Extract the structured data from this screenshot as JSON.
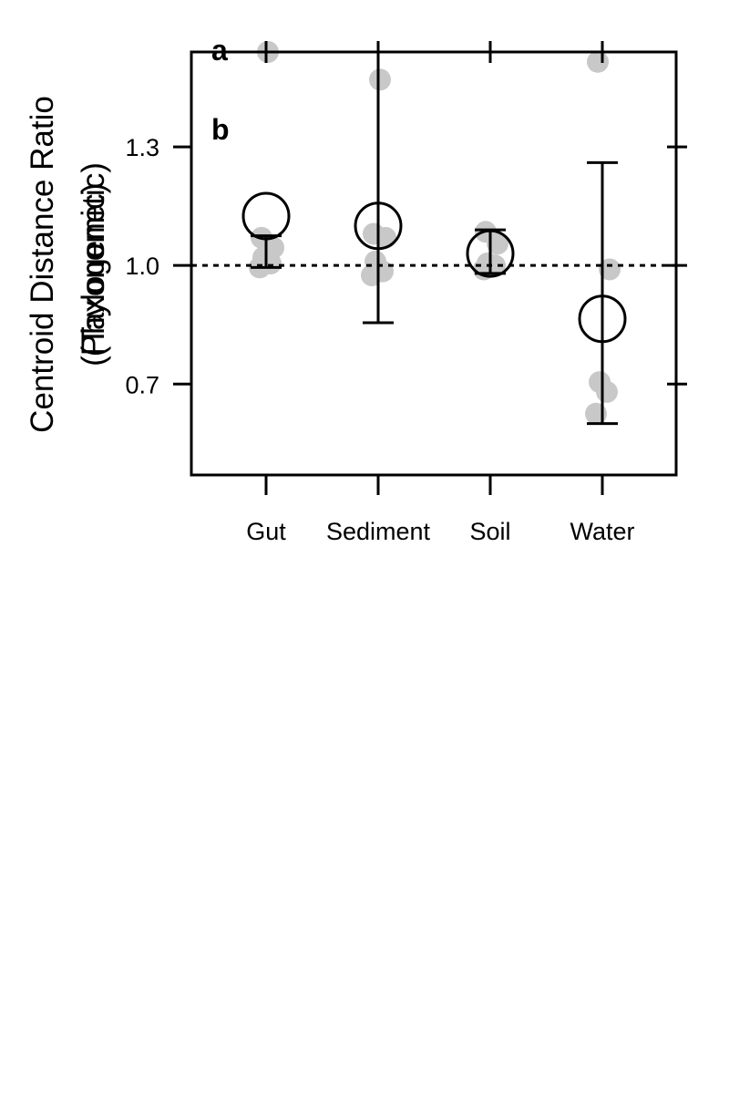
{
  "chart_data": {
    "type": "scatter",
    "categories": [
      "Gut",
      "Sediment",
      "Soil",
      "Water"
    ],
    "ylabel": "Centroid Distance Ratio",
    "ylabel_sub_overlapped": [
      "(Taxonomic)",
      "(Phylogenetic)"
    ],
    "panel_labels": [
      "a",
      "b"
    ],
    "ylim": [
      0.47,
      1.54
    ],
    "yticks": [
      0.7,
      1.0,
      1.3
    ],
    "ytick_labels": [
      "0.7",
      "1.0",
      "1.3"
    ],
    "reference_line": 1.0,
    "means": [
      1.125,
      1.1,
      1.03,
      0.865
    ],
    "error_bars": [
      {
        "low": 0.995,
        "high": 1.075
      },
      {
        "low": 0.855,
        "high": 1.54
      },
      {
        "low": 0.98,
        "high": 1.09
      },
      {
        "low": 0.6,
        "high": 1.26
      }
    ],
    "points": [
      [
        0.995,
        1.005,
        1.02,
        1.045,
        1.07,
        1.54
      ],
      [
        0.975,
        0.985,
        1.01,
        1.07,
        1.08,
        1.47
      ],
      [
        0.99,
        1.0,
        1.005,
        1.055,
        1.085
      ],
      [
        0.625,
        0.68,
        0.705,
        0.99,
        1.515
      ]
    ],
    "colors": {
      "points": "#c8c8c8",
      "lines": "#000000"
    },
    "grid": false,
    "legend": "none"
  }
}
